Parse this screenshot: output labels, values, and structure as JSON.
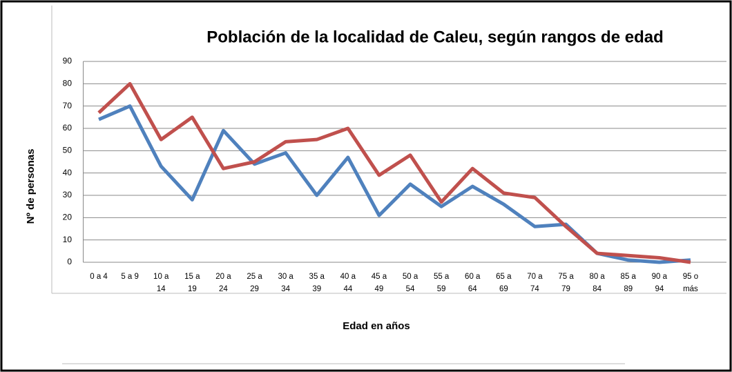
{
  "chart_data": {
    "type": "line",
    "title": "Población de la localidad de Caleu, según rangos de edad",
    "xlabel": "Edad en años",
    "ylabel": "Nº de personas",
    "categories": [
      "0 a 4",
      "5 a 9",
      "10 a 14",
      "15 a 19",
      "20 a 24",
      "25 a 29",
      "30 a 34",
      "35 a 39",
      "40 a 44",
      "45 a 49",
      "50 a 54",
      "55 a 59",
      "60 a 64",
      "65 a 69",
      "70 a 74",
      "75 a 79",
      "80 a 84",
      "85 a 89",
      "90 a 94",
      "95 o más"
    ],
    "series": [
      {
        "color": "#4f81bd",
        "values": [
          64,
          70,
          43,
          28,
          59,
          44,
          49,
          30,
          47,
          21,
          35,
          25,
          34,
          26,
          16,
          17,
          4,
          1,
          0,
          1
        ]
      },
      {
        "color": "#c0504d",
        "values": [
          67,
          80,
          55,
          65,
          42,
          45,
          54,
          55,
          60,
          39,
          48,
          27,
          42,
          31,
          29,
          16,
          4,
          3,
          2,
          0
        ]
      }
    ],
    "ylim": [
      0,
      90
    ],
    "yticks": [
      0,
      10,
      20,
      30,
      40,
      50,
      60,
      70,
      80,
      90
    ],
    "grid": true
  }
}
